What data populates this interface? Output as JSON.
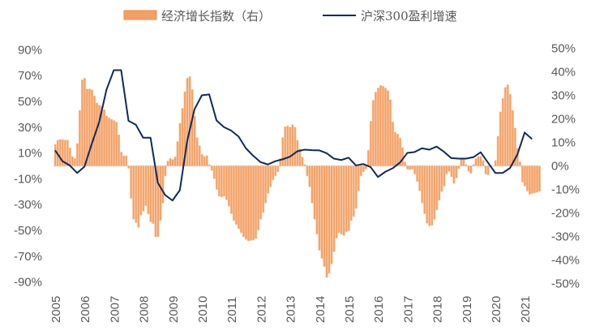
{
  "chart_data": {
    "type": "bar+line",
    "title": "",
    "legend": {
      "placement": "top-center",
      "entries": [
        {
          "name": "经济增长指数（右）",
          "kind": "bar",
          "color": "#F4A064",
          "edge_color": "#ED8B48"
        },
        {
          "name": "沪深300盈利增速",
          "kind": "line",
          "color": "#0D2A5E"
        }
      ]
    },
    "x_axis": {
      "tick_labels": [
        "2005",
        "2006",
        "2007",
        "2008",
        "2009",
        "2010",
        "2011",
        "2012",
        "2013",
        "2014",
        "2015",
        "2016",
        "2017",
        "2018",
        "2019",
        "2020",
        "2021"
      ],
      "range_years": [
        2005,
        2021.6
      ]
    },
    "left_axis": {
      "range": [
        -90,
        90
      ],
      "tick_labels": [
        "90%",
        "70%",
        "50%",
        "30%",
        "10%",
        "-10%",
        "-30%",
        "-50%",
        "-70%",
        "-90%"
      ],
      "tick_values": [
        90,
        70,
        50,
        30,
        10,
        -10,
        -30,
        -50,
        -70,
        -90
      ]
    },
    "right_axis": {
      "range": [
        -50,
        50
      ],
      "tick_labels": [
        "50%",
        "40%",
        "30%",
        "20%",
        "10%",
        "0%",
        "-10%",
        "-20%",
        "-30%",
        "-40%",
        "-50%"
      ],
      "tick_values": [
        50,
        40,
        30,
        20,
        10,
        0,
        -10,
        -20,
        -30,
        -40,
        -50
      ]
    },
    "series": [
      {
        "name": "经济增长指数（右）",
        "type": "bar",
        "axis": "left",
        "frequency": "monthly",
        "start": "2005-01",
        "unit": "%",
        "values": [
          16.7,
          19.9,
          20.5,
          20.5,
          20,
          20,
          14,
          7.3,
          5.8,
          17.4,
          43,
          66.7,
          68,
          59.7,
          59.7,
          58.9,
          54.3,
          48.8,
          47.2,
          46.3,
          43.6,
          38.7,
          37.3,
          36.2,
          35.2,
          34.2,
          24.1,
          10.7,
          7.9,
          7.9,
          -1.9,
          -25.2,
          -41.3,
          -44,
          -47.6,
          -38.2,
          -35,
          -30.9,
          -37.3,
          -43.5,
          -44.8,
          -55,
          -55,
          -42.4,
          -28.7,
          -7.8,
          3.8,
          5.8,
          5,
          7,
          18.9,
          33.1,
          44.7,
          57.6,
          68.1,
          69.3,
          59.3,
          38.7,
          22,
          15.7,
          9,
          7.3,
          7.9,
          1,
          -3.6,
          -9.9,
          -18.2,
          -23.5,
          -24.1,
          -23.5,
          -26.2,
          -31.3,
          -37.1,
          -42.4,
          -45.5,
          -48.7,
          -51.8,
          -55,
          -57,
          -58.1,
          -57.8,
          -57.5,
          -56.5,
          -49.7,
          -41.3,
          -36.1,
          -28.7,
          -21.4,
          -16.2,
          -10.9,
          -7.8,
          -4.6,
          5.8,
          22,
          30.4,
          31,
          30,
          32,
          30,
          19.9,
          13.2,
          6.9,
          1,
          -7.8,
          -16.2,
          -28.7,
          -41.3,
          -53,
          -65.4,
          -71.7,
          -78,
          -86.4,
          -83.3,
          -75.9,
          -66.5,
          -56,
          -51.8,
          -53,
          -54,
          -51,
          -50.4,
          -42.4,
          -39.2,
          -33,
          -19.3,
          -7.8,
          -4.6,
          -2.5,
          12.1,
          34.6,
          50.9,
          57.2,
          60.4,
          62.4,
          61.8,
          60.4,
          58.3,
          51.3,
          34.2,
          26.2,
          24.7,
          21.6,
          14.2,
          3.1,
          -2.5,
          -3,
          -2.5,
          -6.3,
          -12,
          -19.3,
          -28.7,
          -37.1,
          -44.5,
          -46.6,
          -46,
          -41.3,
          -34,
          -26.6,
          -20,
          -15.7,
          -6.3,
          -4.2,
          -8.4,
          -13.6,
          -9.4,
          -2.1,
          5.2,
          5.7,
          1,
          -4.2,
          -5.7,
          1,
          5.7,
          7.4,
          7.4,
          4.2,
          -6.3,
          -7,
          0,
          0,
          4.2,
          23,
          41.9,
          52.4,
          60.8,
          62.9,
          55.5,
          43,
          29.4,
          13.6,
          3.1,
          -12.6,
          -15.7,
          -19.5,
          -22,
          -21.3,
          -20.9,
          -20.5,
          -19.8
        ]
      },
      {
        "name": "沪深300盈利增速",
        "type": "line",
        "axis": "right",
        "frequency": "quarterly",
        "start": "2005Q1",
        "unit": "%",
        "values": [
          6.6,
          2,
          0.2,
          -3,
          -0.3,
          9.4,
          18.6,
          32.4,
          40.7,
          40.7,
          19.2,
          17.5,
          12,
          12,
          -7.2,
          -12.4,
          -14.7,
          -10.3,
          10.6,
          24.1,
          30,
          30.4,
          19.3,
          16.5,
          15,
          12.5,
          7.5,
          4.3,
          1.6,
          0.6,
          2,
          2.8,
          3.9,
          6.2,
          6.9,
          6.7,
          6.6,
          5.4,
          3.1,
          2.5,
          3.5,
          0.2,
          0.8,
          -0.5,
          -4.7,
          -2.5,
          -1,
          1.4,
          5.5,
          5.9,
          7.5,
          6.9,
          8.2,
          6,
          3.3,
          3.1,
          3.1,
          3.7,
          5.8,
          1.4,
          -3,
          -3,
          -0.9,
          4.8,
          14.2,
          11.4
        ]
      }
    ],
    "grid": false,
    "zero_line": true
  }
}
